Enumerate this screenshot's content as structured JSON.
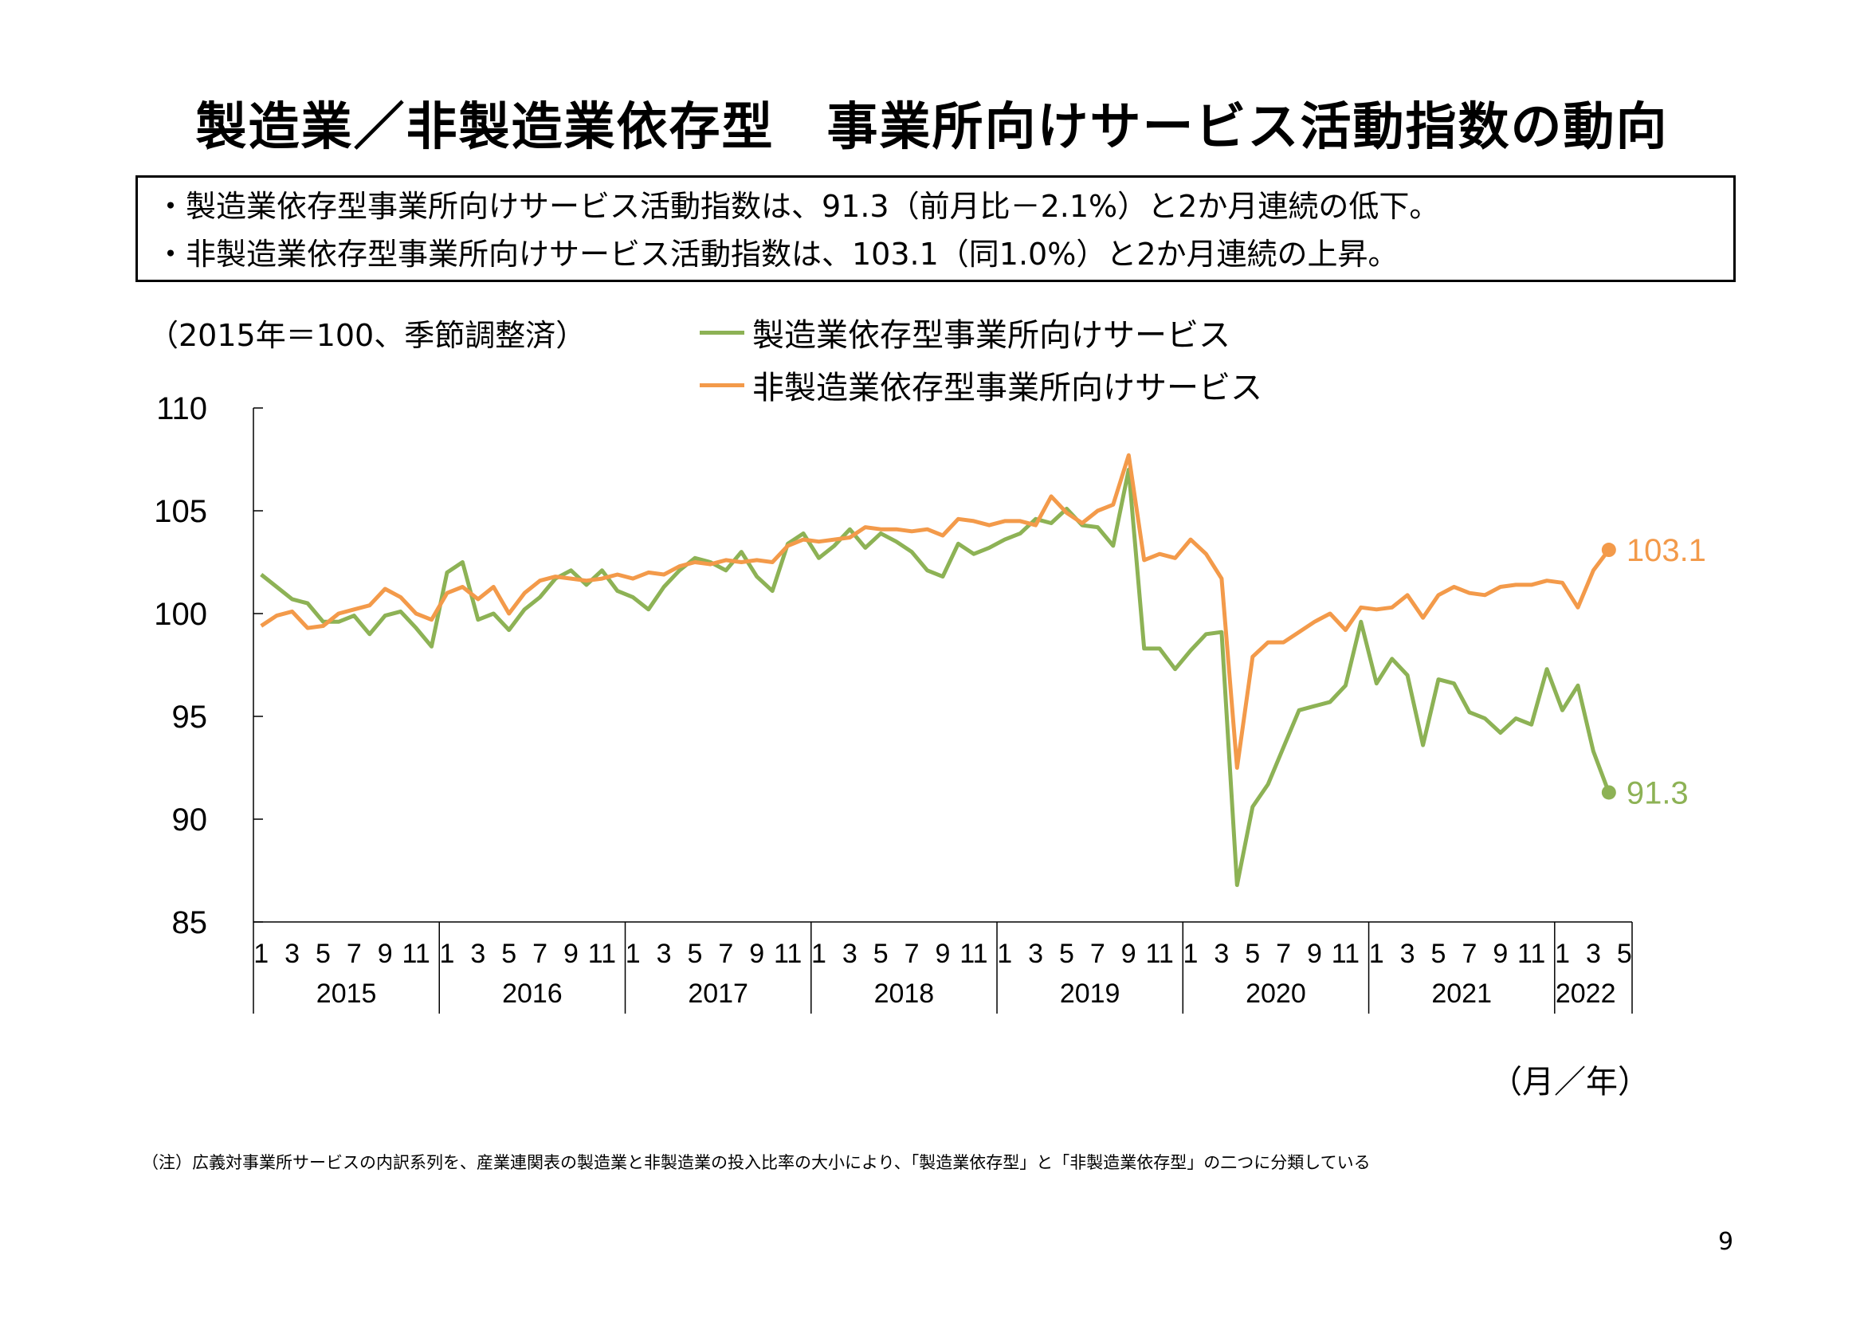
{
  "title": "製造業／非製造業依存型　事業所向けサービス活動指数の動向",
  "summary": [
    "・製造業依存型事業所向けサービス活動指数は、91.3（前月比－2.1%）と2か月連続の低下。",
    "・非製造業依存型事業所向けサービス活動指数は、103.1（同1.0%）と2か月連続の上昇。"
  ],
  "unit_note": "（2015年＝100、季節調整済）",
  "x_unit": "（月／年）",
  "footnote": "（注）広義対事業所サービスの内訳系列を、産業連関表の製造業と非製造業の投入比率の大小により、「製造業依存型」と「非製造業依存型」の二つに分類している",
  "page_number": "9",
  "colors": {
    "manufacturing": "#8DB255",
    "non_manufacturing": "#F39A4A"
  },
  "chart_data": {
    "type": "line",
    "ylim": [
      85,
      110
    ],
    "yticks": [
      110,
      105,
      100,
      95,
      90,
      85
    ],
    "month_ticks": [
      "1",
      "3",
      "5",
      "7",
      "9",
      "11",
      "1",
      "3",
      "5",
      "7",
      "9",
      "11",
      "1",
      "3",
      "5",
      "7",
      "9",
      "11",
      "1",
      "3",
      "5",
      "7",
      "9",
      "11",
      "1",
      "3",
      "5",
      "7",
      "9",
      "11",
      "1",
      "3",
      "5",
      "7",
      "9",
      "11",
      "1",
      "3",
      "5",
      "7",
      "9",
      "11",
      "1",
      "3",
      "5"
    ],
    "years": [
      "2015",
      "2016",
      "2017",
      "2018",
      "2019",
      "2020",
      "2021",
      "2022"
    ],
    "end_labels": [
      "103.1",
      "91.3"
    ],
    "series": [
      {
        "name": "製造業依存型事業所向けサービス",
        "values": [
          101.9,
          101.3,
          100.7,
          100.5,
          99.6,
          99.6,
          99.9,
          99.0,
          99.9,
          100.1,
          99.3,
          98.4,
          102.0,
          102.5,
          99.7,
          100.0,
          99.2,
          100.2,
          100.8,
          101.7,
          102.1,
          101.4,
          102.1,
          101.1,
          100.8,
          100.2,
          101.3,
          102.1,
          102.7,
          102.5,
          102.1,
          103.0,
          101.8,
          101.1,
          103.4,
          103.9,
          102.7,
          103.3,
          104.1,
          103.2,
          103.9,
          103.5,
          103.0,
          102.1,
          101.8,
          103.4,
          102.9,
          103.2,
          103.6,
          103.9,
          104.6,
          104.4,
          105.1,
          104.3,
          104.2,
          103.3,
          107.0,
          98.3,
          98.3,
          97.3,
          98.2,
          99.0,
          99.1,
          86.8,
          90.6,
          91.7,
          93.5,
          95.3,
          95.5,
          95.7,
          96.5,
          99.6,
          96.6,
          97.8,
          97.0,
          93.6,
          96.8,
          96.6,
          95.2,
          94.9,
          94.2,
          94.9,
          94.6,
          97.3,
          95.3,
          96.5,
          93.3,
          91.3
        ]
      },
      {
        "name": "非製造業依存型事業所向けサービス",
        "values": [
          99.4,
          99.9,
          100.1,
          99.3,
          99.4,
          100.0,
          100.2,
          100.4,
          101.2,
          100.8,
          100.0,
          99.7,
          101.0,
          101.3,
          100.7,
          101.3,
          100.0,
          101.0,
          101.6,
          101.8,
          101.7,
          101.6,
          101.7,
          101.9,
          101.7,
          102.0,
          101.9,
          102.3,
          102.5,
          102.4,
          102.6,
          102.5,
          102.6,
          102.5,
          103.3,
          103.6,
          103.5,
          103.6,
          103.7,
          104.2,
          104.1,
          104.1,
          104.0,
          104.1,
          103.8,
          104.6,
          104.5,
          104.3,
          104.5,
          104.5,
          104.3,
          105.7,
          104.9,
          104.4,
          105.0,
          105.3,
          107.7,
          102.6,
          102.9,
          102.7,
          103.6,
          102.9,
          101.7,
          92.5,
          97.9,
          98.6,
          98.6,
          99.1,
          99.6,
          100.0,
          99.2,
          100.3,
          100.2,
          100.3,
          100.9,
          99.8,
          100.9,
          101.3,
          101.0,
          100.9,
          101.3,
          101.4,
          101.4,
          101.6,
          101.5,
          100.3,
          102.1,
          103.1
        ]
      }
    ]
  }
}
